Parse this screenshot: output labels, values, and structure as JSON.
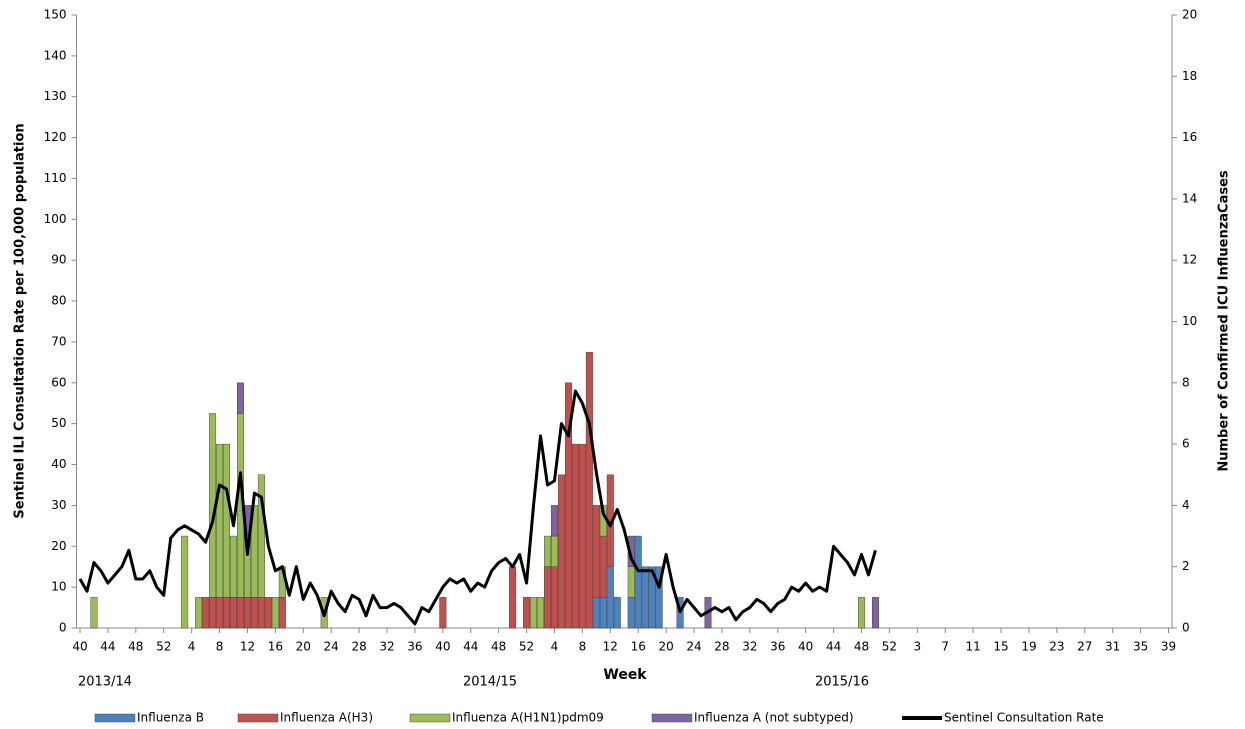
{
  "chart_data": {
    "type": "bar",
    "stacked": true,
    "x_label": "Week",
    "y_label": "Sentinel ILI Consultation Rate per 100,000  population",
    "y2_label": "Number of Confirmed ICU InfluenzaCases",
    "annotations": [
      "2013/14",
      "2014/15",
      "2015/16"
    ],
    "categories": [
      "40",
      null,
      null,
      null,
      "44",
      null,
      null,
      null,
      "48",
      null,
      null,
      null,
      "52",
      null,
      null,
      null,
      "4",
      null,
      null,
      null,
      "8",
      null,
      null,
      null,
      "12",
      null,
      null,
      null,
      "16",
      null,
      null,
      null,
      "20",
      null,
      null,
      null,
      "24",
      null,
      null,
      null,
      "28",
      null,
      null,
      null,
      "32",
      null,
      null,
      null,
      "36",
      null,
      null,
      null,
      "40",
      null,
      null,
      null,
      "44",
      null,
      null,
      null,
      "48",
      null,
      null,
      null,
      "52",
      null,
      null,
      null,
      "4",
      null,
      null,
      null,
      "8",
      null,
      null,
      null,
      "12",
      null,
      null,
      null,
      "16",
      null,
      null,
      null,
      "20",
      null,
      null,
      null,
      "24",
      null,
      null,
      null,
      "28",
      null,
      null,
      null,
      "32",
      null,
      null,
      null,
      "36",
      null,
      null,
      null,
      "40",
      null,
      null,
      null,
      "44",
      null,
      null,
      null,
      "48",
      null,
      null,
      null,
      "52",
      null,
      null,
      null,
      "3",
      null,
      null,
      null,
      "7",
      null,
      null,
      null,
      "11",
      null,
      null,
      null,
      "15",
      null,
      null,
      null,
      "19",
      null,
      null,
      null,
      "23",
      null,
      null,
      null,
      "27",
      null,
      null,
      null,
      "31",
      null,
      null,
      null,
      "35",
      null,
      null,
      null,
      "39"
    ],
    "ylim": [
      0,
      150
    ],
    "yticks": [
      0,
      10,
      20,
      30,
      40,
      50,
      60,
      70,
      80,
      90,
      100,
      110,
      120,
      130,
      140,
      150
    ],
    "y2lim": [
      0,
      20
    ],
    "y2ticks": [
      0,
      2,
      4,
      6,
      8,
      10,
      12,
      14,
      16,
      18,
      20
    ],
    "series": [
      {
        "name": "Influenza B",
        "color": "#4f81bd",
        "axis": "y2",
        "values": [
          0,
          0,
          0,
          0,
          0,
          0,
          0,
          0,
          0,
          0,
          0,
          0,
          0,
          0,
          0,
          0,
          0,
          0,
          0,
          0,
          0,
          0,
          0,
          0,
          0,
          0,
          0,
          0,
          0,
          0,
          0,
          0,
          0,
          0,
          0,
          0,
          0,
          0,
          0,
          0,
          0,
          0,
          0,
          0,
          0,
          0,
          0,
          0,
          0,
          0,
          0,
          0,
          0,
          0,
          0,
          0,
          0,
          0,
          0,
          0,
          0,
          0,
          0,
          0,
          0,
          0,
          0,
          0,
          0,
          0,
          0,
          0,
          0,
          0,
          1,
          1,
          2,
          1,
          0,
          1,
          3,
          2,
          2,
          2,
          0,
          0,
          1,
          0,
          0,
          0,
          0,
          0,
          0,
          0,
          0,
          0,
          0,
          0,
          0,
          0,
          0,
          0,
          0,
          0,
          0,
          0,
          0,
          0,
          0,
          0,
          0,
          0,
          0,
          0,
          0,
          0,
          0,
          0,
          0,
          0,
          0,
          0,
          0,
          0,
          0,
          0,
          0,
          0,
          0,
          0,
          0,
          0,
          0,
          0,
          0,
          0,
          0,
          0,
          0,
          0,
          0,
          0,
          0,
          0,
          0,
          0,
          0,
          0,
          0,
          0,
          0,
          0,
          0,
          0,
          0,
          0,
          0
        ]
      },
      {
        "name": "Influenza A(H3)",
        "color": "#c0504d",
        "axis": "y2",
        "values": [
          0,
          0,
          0,
          0,
          0,
          0,
          0,
          0,
          0,
          0,
          0,
          0,
          0,
          0,
          0,
          0,
          0,
          0,
          1,
          1,
          1,
          1,
          1,
          1,
          1,
          1,
          1,
          1,
          0,
          1,
          0,
          0,
          0,
          0,
          0,
          0,
          0,
          0,
          0,
          0,
          0,
          0,
          0,
          0,
          0,
          0,
          0,
          0,
          0,
          0,
          0,
          0,
          1,
          0,
          0,
          0,
          0,
          0,
          0,
          0,
          0,
          0,
          2,
          0,
          1,
          0,
          0,
          2,
          2,
          5,
          8,
          6,
          6,
          9,
          3,
          2,
          3,
          0,
          0,
          0,
          0,
          0,
          0,
          0,
          0,
          0,
          0,
          0,
          0,
          0,
          0,
          0,
          0,
          0,
          0,
          0,
          0,
          0,
          0,
          0,
          0,
          0,
          0,
          0,
          0,
          0,
          0,
          0,
          0,
          0,
          0,
          0,
          0,
          0,
          0,
          0,
          0,
          0,
          0,
          0,
          0,
          0,
          0,
          0,
          0,
          0,
          0,
          0,
          0,
          0,
          0,
          0,
          0,
          0,
          0,
          0,
          0,
          0,
          0,
          0,
          0,
          0,
          0,
          0,
          0,
          0,
          0,
          0,
          0,
          0,
          0,
          0,
          0,
          0,
          0,
          0,
          0
        ]
      },
      {
        "name": "Influenza A(H1N1)pdm09",
        "color": "#9bbb59",
        "axis": "y2",
        "values": [
          0,
          0,
          1,
          0,
          0,
          0,
          0,
          0,
          0,
          0,
          0,
          0,
          0,
          0,
          0,
          3,
          0,
          1,
          0,
          6,
          5,
          5,
          2,
          6,
          2,
          3,
          4,
          0,
          1,
          1,
          0,
          0,
          0,
          0,
          0,
          1,
          0,
          0,
          0,
          0,
          0,
          0,
          0,
          0,
          0,
          0,
          0,
          0,
          0,
          0,
          0,
          0,
          0,
          0,
          0,
          0,
          0,
          0,
          0,
          0,
          0,
          0,
          0,
          0,
          0,
          1,
          1,
          1,
          1,
          0,
          0,
          0,
          0,
          0,
          0,
          1,
          0,
          0,
          0,
          1,
          0,
          0,
          0,
          0,
          0,
          0,
          0,
          0,
          0,
          0,
          0,
          0,
          0,
          0,
          0,
          0,
          0,
          0,
          0,
          0,
          0,
          0,
          0,
          0,
          0,
          0,
          0,
          0,
          0,
          0,
          0,
          0,
          1,
          0,
          0,
          0,
          0,
          0,
          0,
          0,
          0,
          0,
          0,
          0,
          0,
          0,
          0,
          0,
          0,
          0,
          0,
          0,
          0,
          0,
          0,
          0,
          0,
          0,
          0,
          0,
          0,
          0,
          0,
          0,
          0,
          0,
          0,
          0,
          0,
          0,
          0,
          0,
          0,
          0,
          0,
          0,
          0
        ]
      },
      {
        "name": "Influenza A (not subtyped)",
        "color": "#8064a2",
        "axis": "y2",
        "values": [
          0,
          0,
          0,
          0,
          0,
          0,
          0,
          0,
          0,
          0,
          0,
          0,
          0,
          0,
          0,
          0,
          0,
          0,
          0,
          0,
          0,
          0,
          0,
          1,
          1,
          0,
          0,
          0,
          0,
          0,
          0,
          0,
          0,
          0,
          0,
          0,
          0,
          0,
          0,
          0,
          0,
          0,
          0,
          0,
          0,
          0,
          0,
          0,
          0,
          0,
          0,
          0,
          0,
          0,
          0,
          0,
          0,
          0,
          0,
          0,
          0,
          0,
          0,
          0,
          0,
          0,
          0,
          0,
          1,
          0,
          0,
          0,
          0,
          0,
          0,
          0,
          0,
          0,
          0,
          1,
          0,
          0,
          0,
          0,
          0,
          0,
          0,
          0,
          0,
          0,
          1,
          0,
          0,
          0,
          0,
          0,
          0,
          0,
          0,
          0,
          0,
          0,
          0,
          0,
          0,
          0,
          0,
          0,
          0,
          0,
          0,
          0,
          0,
          0,
          1,
          0,
          0,
          0,
          0,
          0,
          0,
          0,
          0,
          0,
          0,
          0,
          0,
          0,
          0,
          0,
          0,
          0,
          0,
          0,
          0,
          0,
          0,
          0,
          0,
          0,
          0,
          0,
          0,
          0,
          0,
          0,
          0,
          0,
          0,
          0,
          0,
          0,
          0,
          0,
          0,
          0,
          0
        ]
      },
      {
        "name": "Sentinel Consultation Rate",
        "type": "line",
        "color": "#000000",
        "values": [
          12,
          9,
          16,
          14,
          11,
          13,
          15,
          19,
          12,
          12,
          14,
          10,
          8,
          22,
          24,
          25,
          24,
          23,
          21,
          26,
          35,
          34,
          25,
          38,
          18,
          33,
          32,
          20,
          14,
          15,
          8,
          15,
          7,
          11,
          8,
          3,
          9,
          6,
          4,
          8,
          7,
          3,
          8,
          5,
          5,
          6,
          5,
          3,
          1,
          5,
          4,
          7,
          10,
          12,
          11,
          12,
          9,
          11,
          10,
          14,
          16,
          17,
          15,
          18,
          11,
          30,
          47,
          35,
          36,
          50,
          47,
          58,
          55,
          50,
          38,
          28,
          25,
          29,
          24,
          17,
          14,
          14,
          14,
          10,
          18,
          10,
          4,
          7,
          5,
          3,
          4,
          5,
          4,
          5,
          2,
          4,
          5,
          7,
          6,
          4,
          6,
          7,
          10,
          9,
          11,
          9,
          10,
          9,
          20,
          18,
          16,
          13,
          18,
          13,
          19,
          null,
          null,
          null,
          null,
          null,
          null,
          null,
          null,
          null,
          null,
          null,
          null,
          null,
          null,
          null,
          null,
          null,
          null,
          null,
          null,
          null,
          null,
          null,
          null,
          null,
          null,
          null,
          null,
          null,
          null,
          null,
          null,
          null,
          null,
          null,
          null,
          null,
          null,
          null,
          null,
          null,
          null
        ]
      }
    ]
  }
}
